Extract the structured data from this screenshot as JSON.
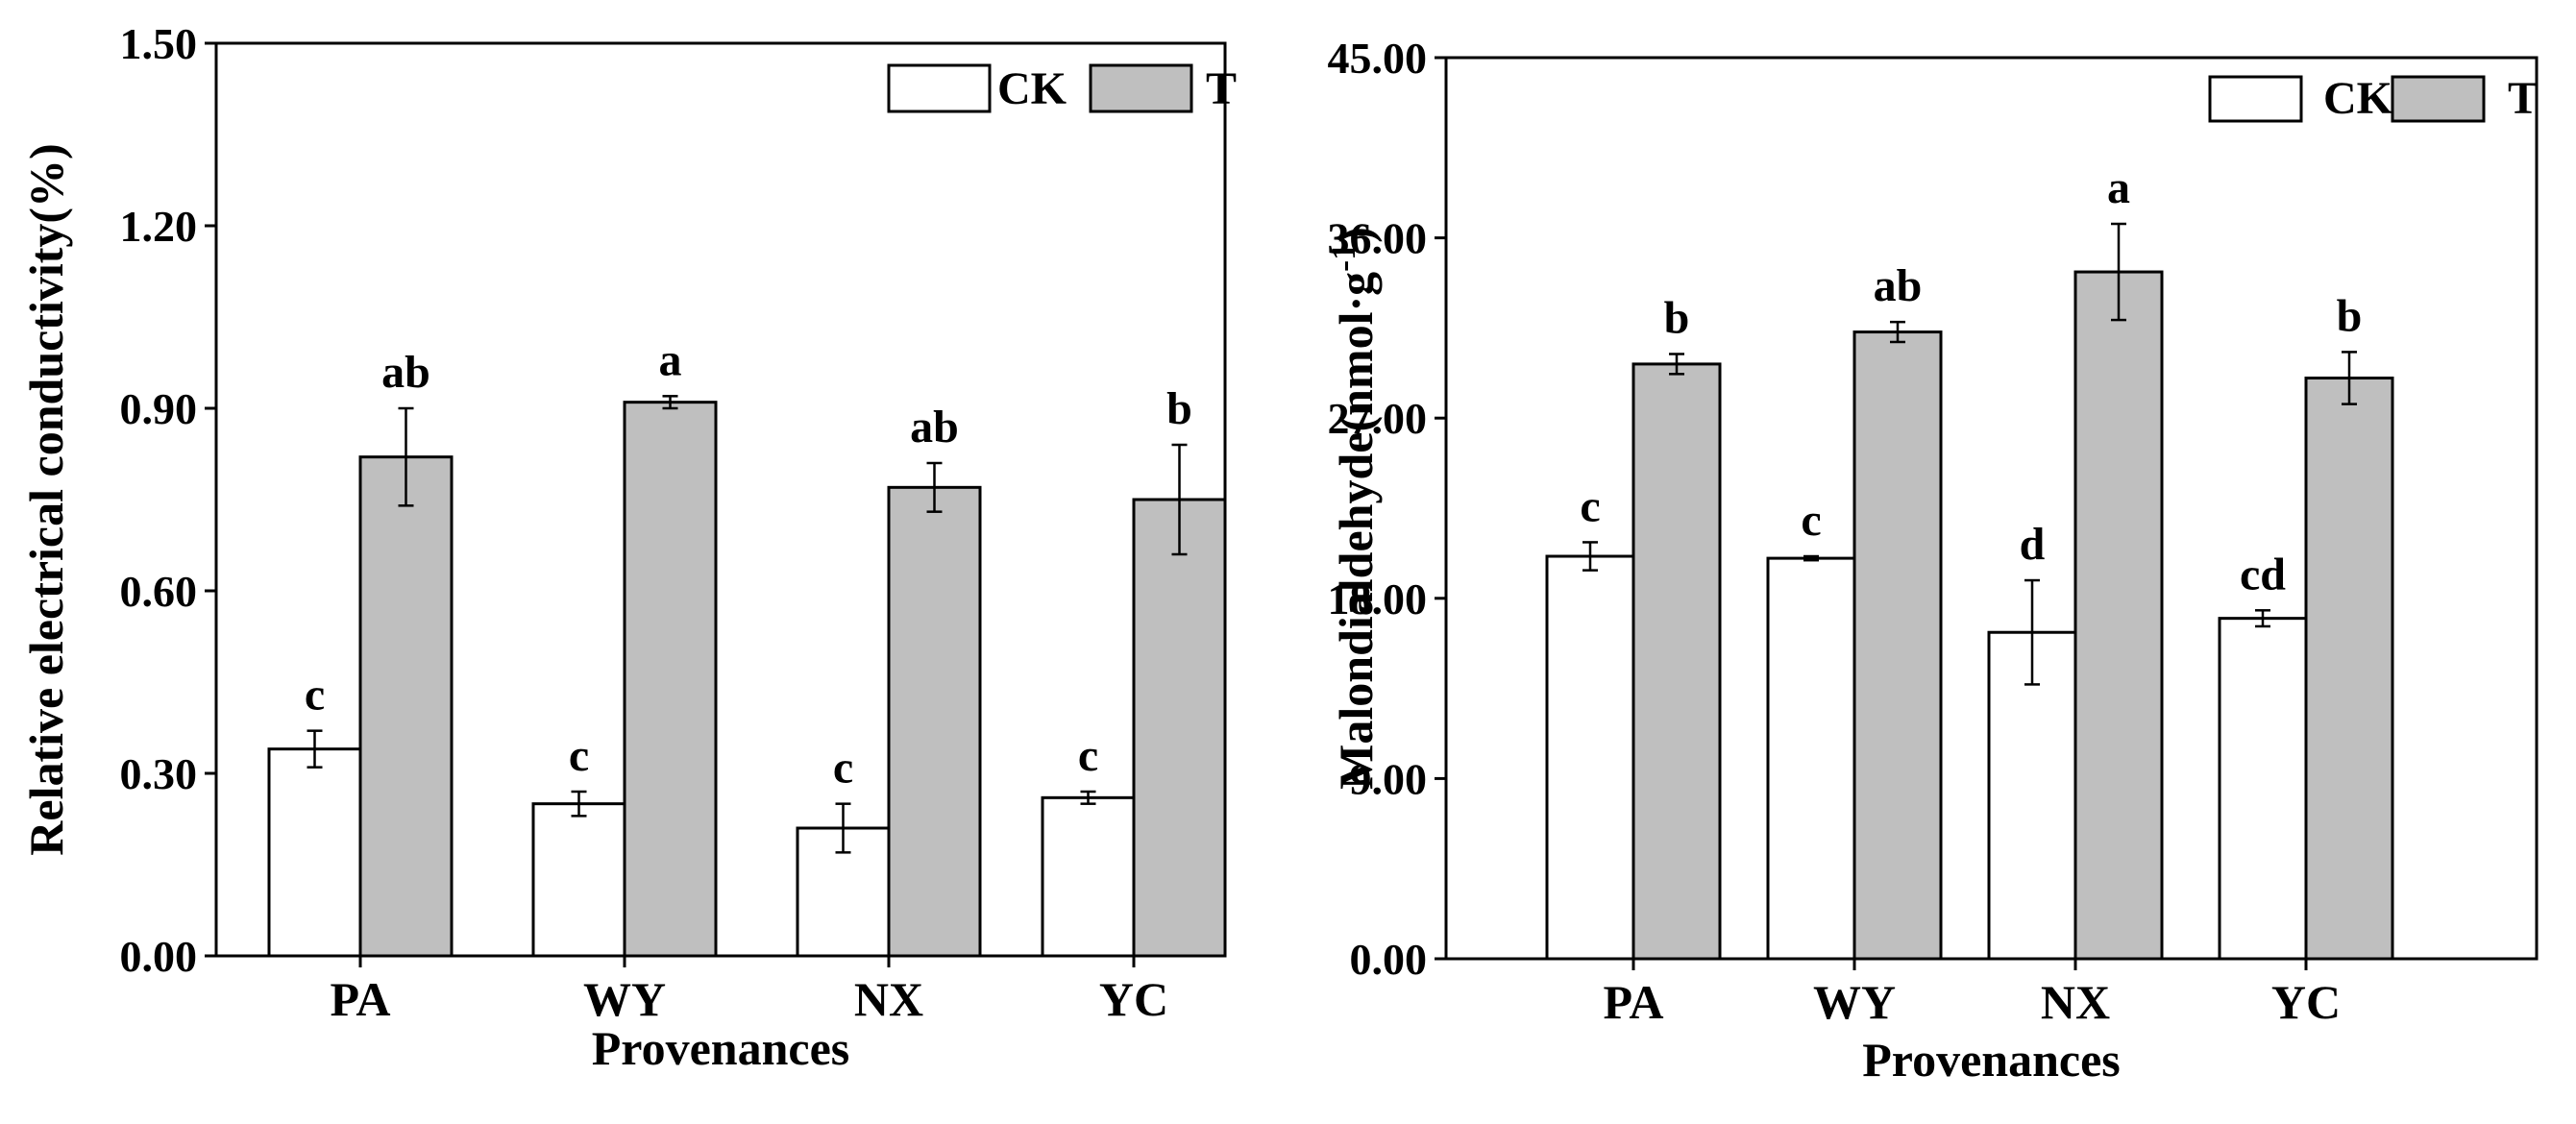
{
  "charts": [
    {
      "type": "bar",
      "title": "",
      "xlabel": "Provenances",
      "ylabel": "Relative electrical conductivity(%)",
      "ylim": [
        0,
        1.5
      ],
      "yticks": [
        "0.00",
        "0.30",
        "0.60",
        "0.90",
        "1.20",
        "1.50"
      ],
      "categories": [
        "PA",
        "WY",
        "NX",
        "YC"
      ],
      "legend_position": "top-right",
      "series": [
        {
          "name": "CK",
          "color": "#ffffff",
          "values": [
            0.34,
            0.25,
            0.21,
            0.26
          ],
          "errors": [
            0.03,
            0.02,
            0.04,
            0.01
          ],
          "labels": [
            "c",
            "c",
            "c",
            "c"
          ]
        },
        {
          "name": "T",
          "color": "#bfbfbf",
          "values": [
            0.82,
            0.91,
            0.77,
            0.75
          ],
          "errors": [
            0.08,
            0.01,
            0.04,
            0.09
          ],
          "labels": [
            "ab",
            "a",
            "ab",
            "b"
          ]
        }
      ]
    },
    {
      "type": "bar",
      "title": "",
      "xlabel": "Provenances",
      "ylabel": "Malondialdehyde(nmol·g",
      "ylabel_sup": "-1",
      "ylabel_end": ")",
      "ylim": [
        0,
        45
      ],
      "yticks": [
        "0.00",
        "9.00",
        "18.00",
        "27.00",
        "36.00",
        "45.00"
      ],
      "categories": [
        "PA",
        "WY",
        "NX",
        "YC"
      ],
      "legend_position": "top-right",
      "series": [
        {
          "name": "CK",
          "color": "#ffffff",
          "values": [
            20.1,
            20.0,
            16.3,
            17.0
          ],
          "errors": [
            0.7,
            0.1,
            2.6,
            0.4
          ],
          "labels": [
            "c",
            "c",
            "d",
            "cd"
          ]
        },
        {
          "name": "T",
          "color": "#bfbfbf",
          "values": [
            29.7,
            31.3,
            34.3,
            29.0
          ],
          "errors": [
            0.5,
            0.5,
            2.4,
            1.3
          ],
          "labels": [
            "b",
            "ab",
            "a",
            "b"
          ]
        }
      ]
    }
  ]
}
